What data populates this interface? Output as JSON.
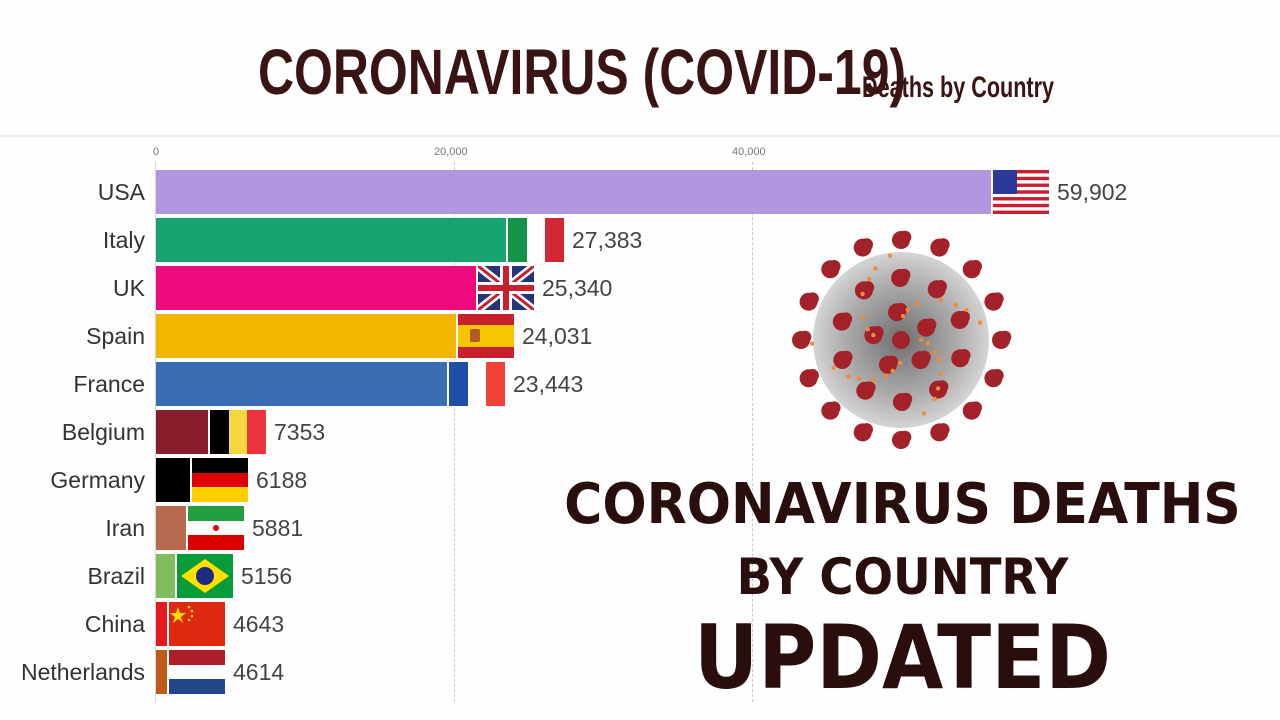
{
  "header": {
    "title": "CORONAVIRUS (COVID-19)",
    "subtitle": "Deaths by Country"
  },
  "axis": {
    "ticks": [
      {
        "label": "0",
        "value": 0
      },
      {
        "label": "20,000",
        "value": 20000
      },
      {
        "label": "40,000",
        "value": 40000
      }
    ]
  },
  "overlay": {
    "line1": "CORONAVIRUS DEATHS",
    "line2": "BY COUNTRY",
    "line3": "UPDATED",
    "image": "coronavirus-illustration"
  },
  "colors": {
    "title": "#3a1414",
    "overlay_text": "#2a0e0e"
  },
  "chart_data": {
    "type": "bar",
    "orientation": "horizontal",
    "title": "CORONAVIRUS (COVID-19) Deaths by Country",
    "xlabel": "",
    "ylabel": "",
    "xlim": [
      0,
      60000
    ],
    "grid": true,
    "categories": [
      "USA",
      "Italy",
      "UK",
      "Spain",
      "France",
      "Belgium",
      "Germany",
      "Iran",
      "Brazil",
      "China",
      "Netherlands"
    ],
    "values": [
      59902,
      27383,
      25340,
      24031,
      23443,
      7353,
      6188,
      5881,
      5156,
      4643,
      4614
    ],
    "value_labels": [
      "59,902",
      "27,383",
      "25,340",
      "24,031",
      "23,443",
      "7353",
      "6188",
      "5881",
      "5156",
      "4643",
      "4614"
    ],
    "bar_colors": [
      "#b196e0",
      "#17a370",
      "#ee0a7c",
      "#f2b600",
      "#3b6db3",
      "#861e2c",
      "#000000",
      "#b86a4e",
      "#7fbd5f",
      "#e3191e",
      "#bd5b19"
    ],
    "flags": [
      "usa",
      "italy",
      "uk",
      "spain",
      "france",
      "belgium",
      "germany",
      "iran",
      "brazil",
      "china",
      "netherlands"
    ]
  }
}
